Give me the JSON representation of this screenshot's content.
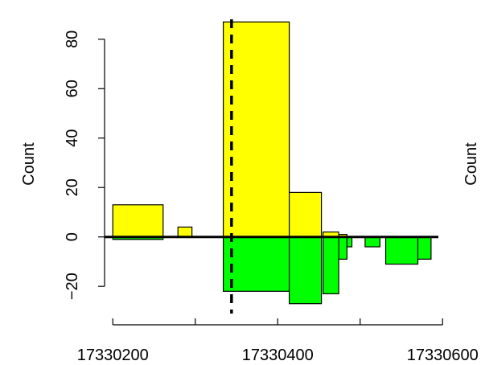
{
  "chart_data": {
    "type": "bar",
    "ylabel": "Count",
    "ylabel_right_partial": "Count",
    "xlim": [
      17330190,
      17330590
    ],
    "ylim": [
      -31,
      91
    ],
    "x_ticks": [
      17330200,
      17330300,
      17330400,
      17330500,
      17330600
    ],
    "x_tick_labels": [
      "17330200",
      "",
      "17330400",
      "",
      "17330600"
    ],
    "y_ticks": [
      -20,
      0,
      20,
      40,
      60,
      80
    ],
    "y_tick_labels": [
      "−20",
      "0",
      "20",
      "40",
      "60",
      "80"
    ],
    "baseline": 0,
    "vline_dashed_x": 17330344,
    "series": [
      {
        "color": "#ffff00",
        "bars": [
          {
            "x0": 17330200,
            "x1": 17330261,
            "value": 13
          },
          {
            "x0": 17330279,
            "x1": 17330296,
            "value": 4
          },
          {
            "x0": 17330334,
            "x1": 17330414,
            "value": 87
          },
          {
            "x0": 17330414,
            "x1": 17330453,
            "value": 18
          },
          {
            "x0": 17330455,
            "x1": 17330474,
            "value": 2
          },
          {
            "x0": 17330474,
            "x1": 17330484,
            "value": 1
          }
        ]
      },
      {
        "color": "#00ff00",
        "bars": [
          {
            "x0": 17330200,
            "x1": 17330261,
            "value": -1
          },
          {
            "x0": 17330334,
            "x1": 17330414,
            "value": -22
          },
          {
            "x0": 17330414,
            "x1": 17330453,
            "value": -27
          },
          {
            "x0": 17330455,
            "x1": 17330474,
            "value": -23
          },
          {
            "x0": 17330474,
            "x1": 17330484,
            "value": -9
          },
          {
            "x0": 17330484,
            "x1": 17330490,
            "value": -4
          },
          {
            "x0": 17330506,
            "x1": 17330524,
            "value": -4
          },
          {
            "x0": 17330531,
            "x1": 17330570,
            "value": -11
          },
          {
            "x0": 17330570,
            "x1": 17330586,
            "value": -9
          }
        ]
      }
    ]
  }
}
